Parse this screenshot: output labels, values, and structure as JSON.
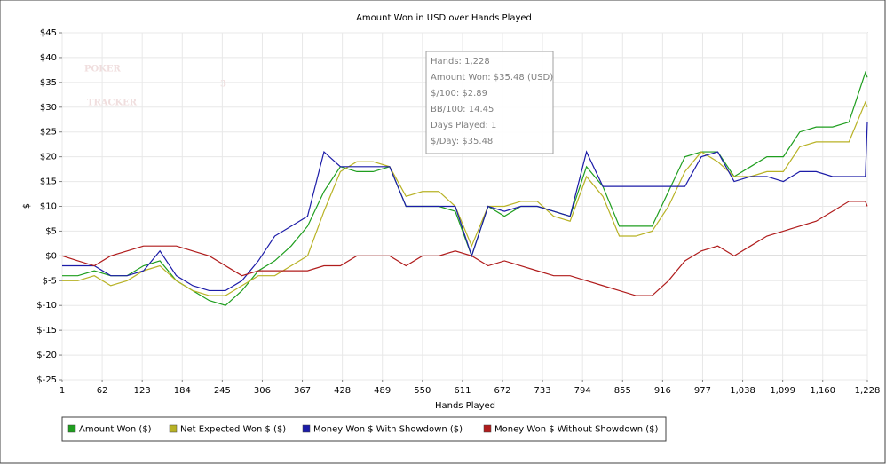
{
  "chart_data": {
    "type": "line",
    "title": "Amount Won in USD over Hands Played",
    "xlabel": "Hands Played",
    "ylabel": "$",
    "watermark": [
      "POKER",
      "TRACKER",
      "3"
    ],
    "annotations": [
      "Hands: 1,228",
      "Amount Won: $35.48 (USD)",
      "$/100: $2.89",
      "BB/100: 14.45",
      "Days Played: 1",
      "$/Day: $35.48"
    ],
    "grid": true,
    "legend": "bottom",
    "xlim": [
      1,
      1228
    ],
    "ylim": [
      -25,
      45
    ],
    "xticks": [
      1,
      62,
      123,
      184,
      245,
      306,
      367,
      428,
      489,
      550,
      611,
      672,
      733,
      794,
      855,
      916,
      977,
      {
        "value": 1038,
        "label": "1,038"
      },
      {
        "value": 1099,
        "label": "1,099"
      },
      {
        "value": 1160,
        "label": "1,160"
      },
      {
        "value": 1228,
        "label": "1,228"
      }
    ],
    "yticks": [
      {
        "value": -25,
        "label": "$-25"
      },
      {
        "value": -20,
        "label": "$-20"
      },
      {
        "value": -15,
        "label": "$-15"
      },
      {
        "value": -10,
        "label": "$-10"
      },
      {
        "value": -5,
        "label": "$-5"
      },
      {
        "value": 0,
        "label": "$0"
      },
      {
        "value": 5,
        "label": "$5"
      },
      {
        "value": 10,
        "label": "$10"
      },
      {
        "value": 15,
        "label": "$15"
      },
      {
        "value": 20,
        "label": "$20"
      },
      {
        "value": 25,
        "label": "$25"
      },
      {
        "value": 30,
        "label": "$30"
      },
      {
        "value": 35,
        "label": "$35"
      },
      {
        "value": 40,
        "label": "$40"
      },
      {
        "value": 45,
        "label": "$45"
      }
    ],
    "x": [
      1,
      25,
      50,
      75,
      100,
      125,
      150,
      175,
      200,
      225,
      250,
      275,
      300,
      325,
      350,
      375,
      400,
      425,
      450,
      475,
      500,
      525,
      550,
      575,
      600,
      625,
      650,
      675,
      700,
      725,
      750,
      775,
      800,
      825,
      850,
      875,
      900,
      925,
      950,
      975,
      1000,
      1025,
      1050,
      1075,
      1100,
      1125,
      1150,
      1175,
      1200,
      1225,
      1228
    ],
    "series": [
      {
        "name": "Amount Won ($)",
        "color": "#1f9e1f",
        "values": [
          -4,
          -4,
          -3,
          -4,
          -4,
          -2,
          -1,
          -5,
          -7,
          -9,
          -10,
          -7,
          -3,
          -1,
          2,
          6,
          13,
          18,
          17,
          17,
          18,
          10,
          10,
          10,
          9,
          0,
          10,
          8,
          10,
          10,
          9,
          8,
          18,
          14,
          6,
          6,
          6,
          13,
          20,
          21,
          21,
          16,
          18,
          20,
          20,
          25,
          26,
          26,
          27,
          37,
          36
        ]
      },
      {
        "name": "Net Expected Won $ ($)",
        "color": "#b8b225",
        "values": [
          -5,
          -5,
          -4,
          -6,
          -5,
          -3,
          -2,
          -5,
          -7,
          -8,
          -8,
          -6,
          -4,
          -4,
          -2,
          0,
          9,
          17,
          19,
          19,
          18,
          12,
          13,
          13,
          10,
          2,
          10,
          10,
          11,
          11,
          8,
          7,
          16,
          12,
          4,
          4,
          5,
          10,
          17,
          21,
          19,
          16,
          16,
          17,
          17,
          22,
          23,
          23,
          23,
          31,
          30
        ]
      },
      {
        "name": "Money Won $ With Showdown ($)",
        "color": "#1c1ca8",
        "values": [
          -2,
          -2,
          -2,
          -4,
          -4,
          -3,
          1,
          -4,
          -6,
          -7,
          -7,
          -5,
          -1,
          4,
          6,
          8,
          21,
          18,
          18,
          18,
          18,
          10,
          10,
          10,
          10,
          0,
          10,
          9,
          10,
          10,
          9,
          8,
          21,
          14,
          14,
          14,
          14,
          14,
          14,
          20,
          21,
          15,
          16,
          16,
          15,
          17,
          17,
          16,
          16,
          16,
          27
        ]
      },
      {
        "name": "Money Won $ Without Showdown ($)",
        "color": "#b01c1c",
        "values": [
          0,
          -1,
          -2,
          0,
          1,
          2,
          2,
          2,
          1,
          0,
          -2,
          -4,
          -3,
          -3,
          -3,
          -3,
          -2,
          -2,
          0,
          0,
          0,
          -2,
          0,
          0,
          1,
          0,
          -2,
          -1,
          -2,
          -3,
          -4,
          -4,
          -5,
          -6,
          -7,
          -8,
          -8,
          -5,
          -1,
          1,
          2,
          0,
          2,
          4,
          5,
          6,
          7,
          9,
          11,
          11,
          10
        ]
      }
    ]
  }
}
